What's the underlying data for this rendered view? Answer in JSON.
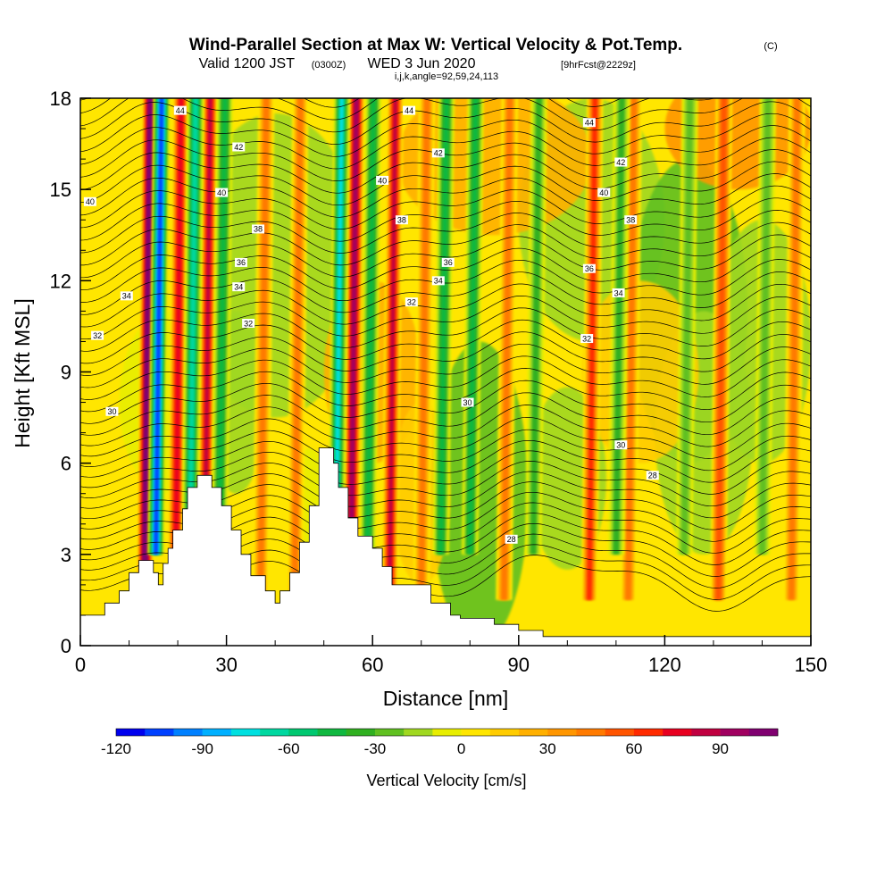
{
  "header": {
    "title": "Wind-Parallel Section at Max W: Vertical Velocity & Pot.Temp.",
    "title_mark": "(C)",
    "valid_prefix": "Valid 1200 JST",
    "valid_utc": "(0300Z)",
    "valid_date": "WED 3 Jun 2020",
    "forecast": "[9hrFcst@2229z]",
    "indices": "i,j,k,angle=92,59,24,113"
  },
  "chart_data": {
    "type": "heatmap",
    "xlabel": "Distance [nm]",
    "ylabel": "Height [Kft MSL]",
    "xlim": [
      0,
      150
    ],
    "ylim": [
      0,
      18
    ],
    "x_ticks": [
      0,
      30,
      60,
      90,
      120,
      150
    ],
    "y_ticks": [
      0,
      3,
      6,
      9,
      12,
      15,
      18
    ],
    "colorbar": {
      "label": "Vertical Velocity [cm/s]",
      "range": [
        -120,
        110
      ],
      "step": 10,
      "tick_values": [
        -120,
        -90,
        -60,
        -30,
        0,
        30,
        60,
        90
      ],
      "tick_labels": [
        "-120",
        "-90",
        "-60",
        "-30",
        "0",
        "30",
        "60",
        "90"
      ],
      "colors": [
        "#0000ee",
        "#0040ff",
        "#0080ff",
        "#00b0ff",
        "#00e0e0",
        "#00d8a0",
        "#00c870",
        "#10b840",
        "#30b020",
        "#60c020",
        "#a0d820",
        "#e8ee00",
        "#ffe600",
        "#ffcc00",
        "#ffb000",
        "#ff9600",
        "#ff7a00",
        "#ff5400",
        "#ff2a00",
        "#e80020",
        "#c00040",
        "#a00060",
        "#800070"
      ]
    },
    "terrain_profile": [
      [
        0,
        1.0
      ],
      [
        5,
        1.0
      ],
      [
        5,
        1.4
      ],
      [
        8,
        1.4
      ],
      [
        8,
        1.8
      ],
      [
        10,
        1.8
      ],
      [
        10,
        2.4
      ],
      [
        12,
        2.4
      ],
      [
        12,
        2.8
      ],
      [
        15,
        2.8
      ],
      [
        15,
        2.4
      ],
      [
        16,
        2.4
      ],
      [
        16,
        2.0
      ],
      [
        17,
        2.0
      ],
      [
        17,
        2.7
      ],
      [
        18,
        2.7
      ],
      [
        18,
        3.2
      ],
      [
        19,
        3.2
      ],
      [
        19,
        3.8
      ],
      [
        21,
        3.8
      ],
      [
        21,
        4.5
      ],
      [
        22,
        4.5
      ],
      [
        22,
        5.2
      ],
      [
        24,
        5.2
      ],
      [
        24,
        5.6
      ],
      [
        27,
        5.6
      ],
      [
        27,
        5.2
      ],
      [
        29,
        5.2
      ],
      [
        29,
        4.6
      ],
      [
        31,
        4.6
      ],
      [
        31,
        3.8
      ],
      [
        33,
        3.8
      ],
      [
        33,
        3.0
      ],
      [
        35,
        3.0
      ],
      [
        35,
        2.3
      ],
      [
        38,
        2.3
      ],
      [
        38,
        1.8
      ],
      [
        40,
        1.8
      ],
      [
        40,
        1.4
      ],
      [
        41,
        1.4
      ],
      [
        41,
        1.8
      ],
      [
        43,
        1.8
      ],
      [
        43,
        2.4
      ],
      [
        45,
        2.4
      ],
      [
        45,
        3.4
      ],
      [
        47,
        3.4
      ],
      [
        47,
        4.6
      ],
      [
        49,
        4.6
      ],
      [
        49,
        6.5
      ],
      [
        52,
        6.5
      ],
      [
        52,
        6.0
      ],
      [
        53,
        6.0
      ],
      [
        53,
        5.2
      ],
      [
        55,
        5.2
      ],
      [
        55,
        4.2
      ],
      [
        57,
        4.2
      ],
      [
        57,
        3.6
      ],
      [
        60,
        3.6
      ],
      [
        60,
        3.2
      ],
      [
        62,
        3.2
      ],
      [
        62,
        2.6
      ],
      [
        64,
        2.6
      ],
      [
        64,
        2.0
      ],
      [
        72,
        2.0
      ],
      [
        72,
        1.4
      ],
      [
        76,
        1.4
      ],
      [
        76,
        1.0
      ],
      [
        78,
        1.0
      ],
      [
        78,
        0.9
      ],
      [
        85,
        0.9
      ],
      [
        85,
        0.7
      ],
      [
        90,
        0.7
      ],
      [
        90,
        0.5
      ],
      [
        95,
        0.5
      ],
      [
        95,
        0.3
      ],
      [
        150,
        0.3
      ]
    ],
    "updrafts": [
      {
        "x": 13.2,
        "value": 110
      },
      {
        "x": 19.5,
        "value": 70
      },
      {
        "x": 25.5,
        "value": 80
      },
      {
        "x": 37.0,
        "value": 40
      },
      {
        "x": 44.0,
        "value": 40
      },
      {
        "x": 55.5,
        "value": 90
      },
      {
        "x": 63.5,
        "value": 80
      },
      {
        "x": 70.0,
        "value": 40
      },
      {
        "x": 87.0,
        "value": 40
      },
      {
        "x": 104.5,
        "value": 60
      },
      {
        "x": 112.5,
        "value": 40
      },
      {
        "x": 131.0,
        "value": 50
      },
      {
        "x": 146.0,
        "value": 40
      }
    ],
    "downdrafts": [
      {
        "x": 15.5,
        "value": -110
      },
      {
        "x": 22.5,
        "value": -70
      },
      {
        "x": 28.5,
        "value": -50
      },
      {
        "x": 52.5,
        "value": -80
      },
      {
        "x": 59.0,
        "value": -50
      },
      {
        "x": 74.0,
        "value": -50
      },
      {
        "x": 80.0,
        "value": -50
      },
      {
        "x": 93.0,
        "value": -40
      },
      {
        "x": 110.0,
        "value": -40
      },
      {
        "x": 124.0,
        "value": -30
      },
      {
        "x": 140.0,
        "value": -30
      }
    ],
    "isentropes": [
      {
        "label": "28",
        "label_x": 88.5,
        "label_y": 3.5
      },
      {
        "label": "28",
        "label_x": 117.5,
        "label_y": 5.6
      },
      {
        "label": "30",
        "label_x": 6.5,
        "label_y": 7.7
      },
      {
        "label": "30",
        "label_x": 79.5,
        "label_y": 8.0
      },
      {
        "label": "30",
        "label_x": 111,
        "label_y": 6.6
      },
      {
        "label": "32",
        "label_x": 3.5,
        "label_y": 10.2
      },
      {
        "label": "32",
        "label_x": 34.5,
        "label_y": 10.6
      },
      {
        "label": "32",
        "label_x": 68,
        "label_y": 11.3
      },
      {
        "label": "32",
        "label_x": 104,
        "label_y": 10.1
      },
      {
        "label": "34",
        "label_x": 9.5,
        "label_y": 11.5
      },
      {
        "label": "34",
        "label_x": 32.5,
        "label_y": 11.8
      },
      {
        "label": "34",
        "label_x": 73.5,
        "label_y": 12.0
      },
      {
        "label": "34",
        "label_x": 110.5,
        "label_y": 11.6
      },
      {
        "label": "36",
        "label_x": 33,
        "label_y": 12.6
      },
      {
        "label": "36",
        "label_x": 75.5,
        "label_y": 12.6
      },
      {
        "label": "36",
        "label_x": 104.5,
        "label_y": 12.4
      },
      {
        "label": "38",
        "label_x": 36.5,
        "label_y": 13.7
      },
      {
        "label": "38",
        "label_x": 66,
        "label_y": 14.0
      },
      {
        "label": "38",
        "label_x": 113,
        "label_y": 14.0
      },
      {
        "label": "40",
        "label_x": 2,
        "label_y": 14.6
      },
      {
        "label": "40",
        "label_x": 29,
        "label_y": 14.9
      },
      {
        "label": "40",
        "label_x": 62,
        "label_y": 15.3
      },
      {
        "label": "40",
        "label_x": 107.5,
        "label_y": 14.9
      },
      {
        "label": "42",
        "label_x": 32.5,
        "label_y": 16.4
      },
      {
        "label": "42",
        "label_x": 73.5,
        "label_y": 16.2
      },
      {
        "label": "42",
        "label_x": 111,
        "label_y": 15.9
      },
      {
        "label": "44",
        "label_x": 20.5,
        "label_y": 17.6
      },
      {
        "label": "44",
        "label_x": 67.5,
        "label_y": 17.6
      },
      {
        "label": "44",
        "label_x": 104.5,
        "label_y": 17.2
      }
    ]
  }
}
